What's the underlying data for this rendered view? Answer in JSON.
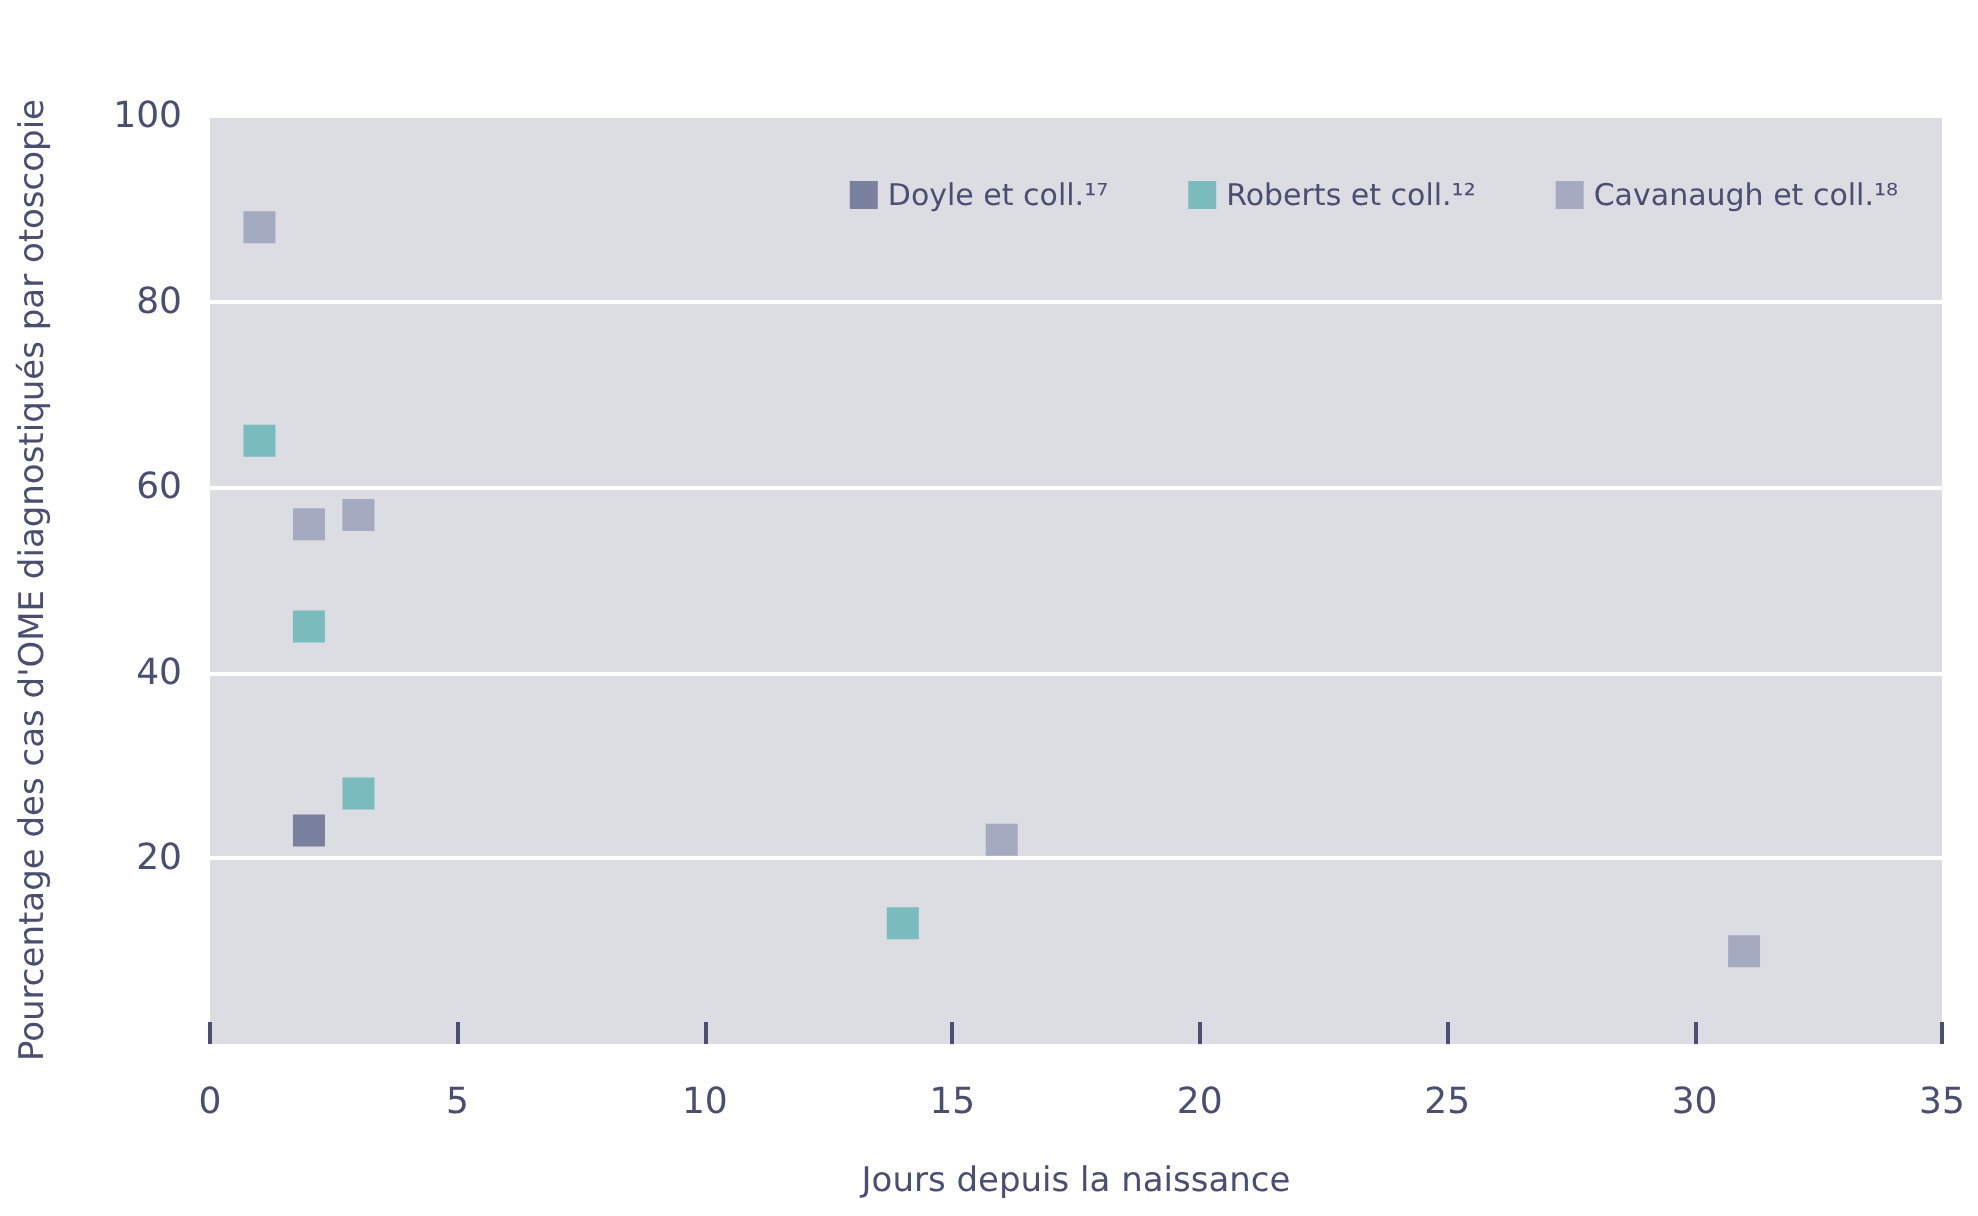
{
  "chart_data": {
    "type": "scatter",
    "xlabel": "Jours depuis la naissance",
    "ylabel": "Pourcentage des cas d'OME diagnostiqués par otoscopie",
    "xlim": [
      0,
      35
    ],
    "xticks": [
      0,
      5,
      10,
      15,
      20,
      25,
      30,
      35
    ],
    "ylim": [
      0,
      100
    ],
    "yticks": [
      20,
      40,
      60,
      80,
      100
    ],
    "grid": "y",
    "legend": "top right",
    "marker": "square",
    "series": [
      {
        "name": "Doyle et coll.¹⁷",
        "color": "#626a8c",
        "x": [
          2
        ],
        "values": [
          23
        ]
      },
      {
        "name": "Roberts et coll.¹²",
        "color": "#62b4b4",
        "x": [
          1,
          2,
          3,
          14
        ],
        "values": [
          65,
          45,
          27,
          13
        ]
      },
      {
        "name": "Cavanaugh et coll.¹⁸",
        "color": "#969db5",
        "x": [
          1,
          2,
          3,
          16,
          31
        ],
        "values": [
          88,
          56,
          57,
          22,
          10
        ]
      }
    ]
  }
}
